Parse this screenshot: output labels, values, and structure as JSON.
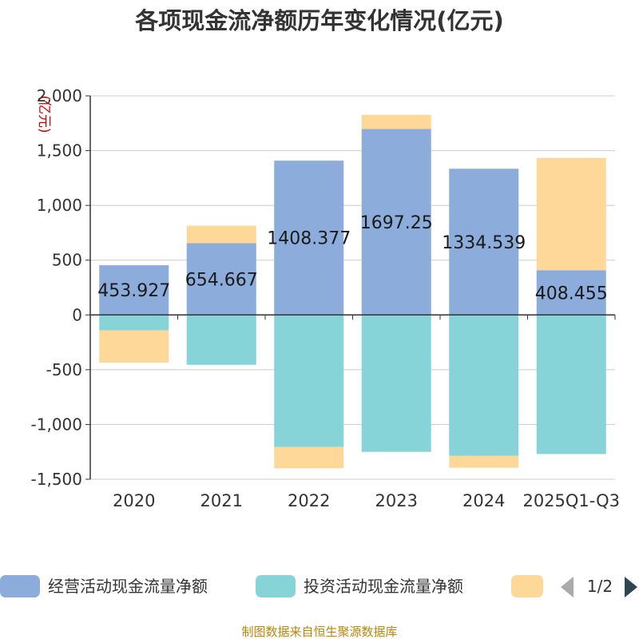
{
  "chart_data": {
    "type": "bar",
    "stacked": true,
    "title": "各项现金流净额历年变化情况(亿元)",
    "ylabel": "(亿元)",
    "xlabel": "",
    "ylim": [
      -1500,
      2000
    ],
    "yticks": [
      2000,
      1500,
      1000,
      500,
      0,
      -500,
      -1000,
      -1500
    ],
    "ytick_labels": [
      "2,000",
      "1,500",
      "1,000",
      "500",
      "0",
      "-500",
      "-1,000",
      "-1,500"
    ],
    "categories": [
      "2020",
      "2021",
      "2022",
      "2023",
      "2024",
      "2025Q1-Q3"
    ],
    "series": [
      {
        "name": "经营活动现金流量净额",
        "color": "#8caddb",
        "values": [
          453.927,
          654.667,
          1408.377,
          1697.25,
          1334.539,
          408.455
        ],
        "labels": [
          "453.927",
          "654.667",
          "1408.377",
          "1697.25",
          "1334.539",
          "408.455"
        ]
      },
      {
        "name": "投资活动现金流量净额",
        "color": "#86d4d8",
        "values": [
          -140,
          -455,
          -1205,
          -1250,
          -1285,
          -1270
        ]
      },
      {
        "name": "",
        "color": "#fdd899",
        "values": [
          -295,
          160,
          -195,
          130,
          -110,
          1025
        ]
      }
    ],
    "legend_position": "bottom",
    "grid": true
  },
  "legend": {
    "page_indicator": "1/2"
  },
  "source": "制图数据来自恒生聚源数据库"
}
